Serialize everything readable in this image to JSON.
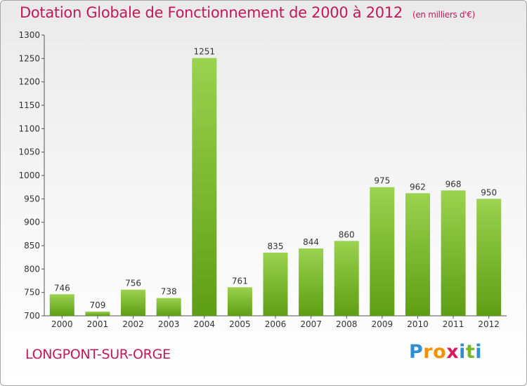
{
  "header": {
    "title": "Dotation Globale de Fonctionnement de 2000 à 2012",
    "subtitle": "(en milliers d'€)"
  },
  "footer": {
    "commune": "LONGPONT-SUR-ORGE",
    "logo": [
      "P",
      "r",
      "o",
      "x",
      "i",
      "t",
      "i"
    ]
  },
  "colors": {
    "title": "#c2185b",
    "bar_light": "#9bd24f",
    "bar_dark": "#5e9e15"
  },
  "chart_data": {
    "type": "bar",
    "title": "Dotation Globale de Fonctionnement de 2000 à 2012",
    "subtitle": "(en milliers d'€)",
    "xlabel": "",
    "ylabel": "",
    "categories": [
      "2000",
      "2001",
      "2002",
      "2003",
      "2004",
      "2005",
      "2006",
      "2007",
      "2008",
      "2009",
      "2010",
      "2011",
      "2012"
    ],
    "values": [
      746,
      709,
      756,
      738,
      1251,
      761,
      835,
      844,
      860,
      975,
      962,
      968,
      950
    ],
    "ylim": [
      700,
      1300
    ],
    "yticks": [
      700,
      750,
      800,
      850,
      900,
      950,
      1000,
      1050,
      1100,
      1150,
      1200,
      1250,
      1300
    ],
    "grid": false,
    "legend": "none"
  }
}
